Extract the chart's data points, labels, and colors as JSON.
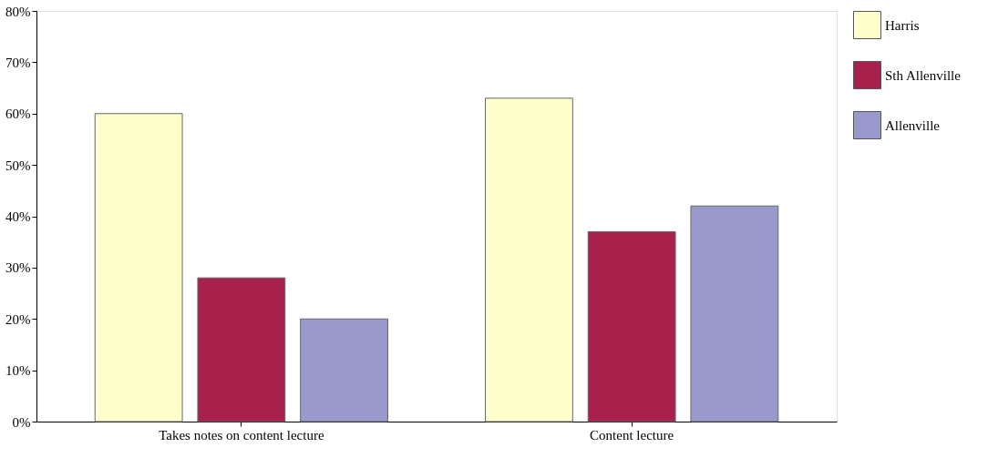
{
  "chart_data": {
    "type": "bar",
    "categories": [
      "Takes notes on content lecture",
      "Content lecture"
    ],
    "series": [
      {
        "name": "Harris",
        "color": "#ffffcc",
        "values": [
          60,
          63
        ]
      },
      {
        "name": "Sth Allenville",
        "color": "#a8204c",
        "values": [
          28,
          37
        ]
      },
      {
        "name": "Allenville",
        "color": "#9999cc",
        "values": [
          20,
          42
        ]
      }
    ],
    "ylim": [
      0,
      80
    ],
    "yticks": [
      {
        "value": 0,
        "label": "0%"
      },
      {
        "value": 10,
        "label": "10%"
      },
      {
        "value": 20,
        "label": "20%"
      },
      {
        "value": 30,
        "label": "30%"
      },
      {
        "value": 40,
        "label": "40%"
      },
      {
        "value": 50,
        "label": "50%"
      },
      {
        "value": 60,
        "label": "60%"
      },
      {
        "value": 70,
        "label": "70%"
      },
      {
        "value": 80,
        "label": "80%"
      }
    ],
    "grid": false,
    "legend": "top right"
  }
}
